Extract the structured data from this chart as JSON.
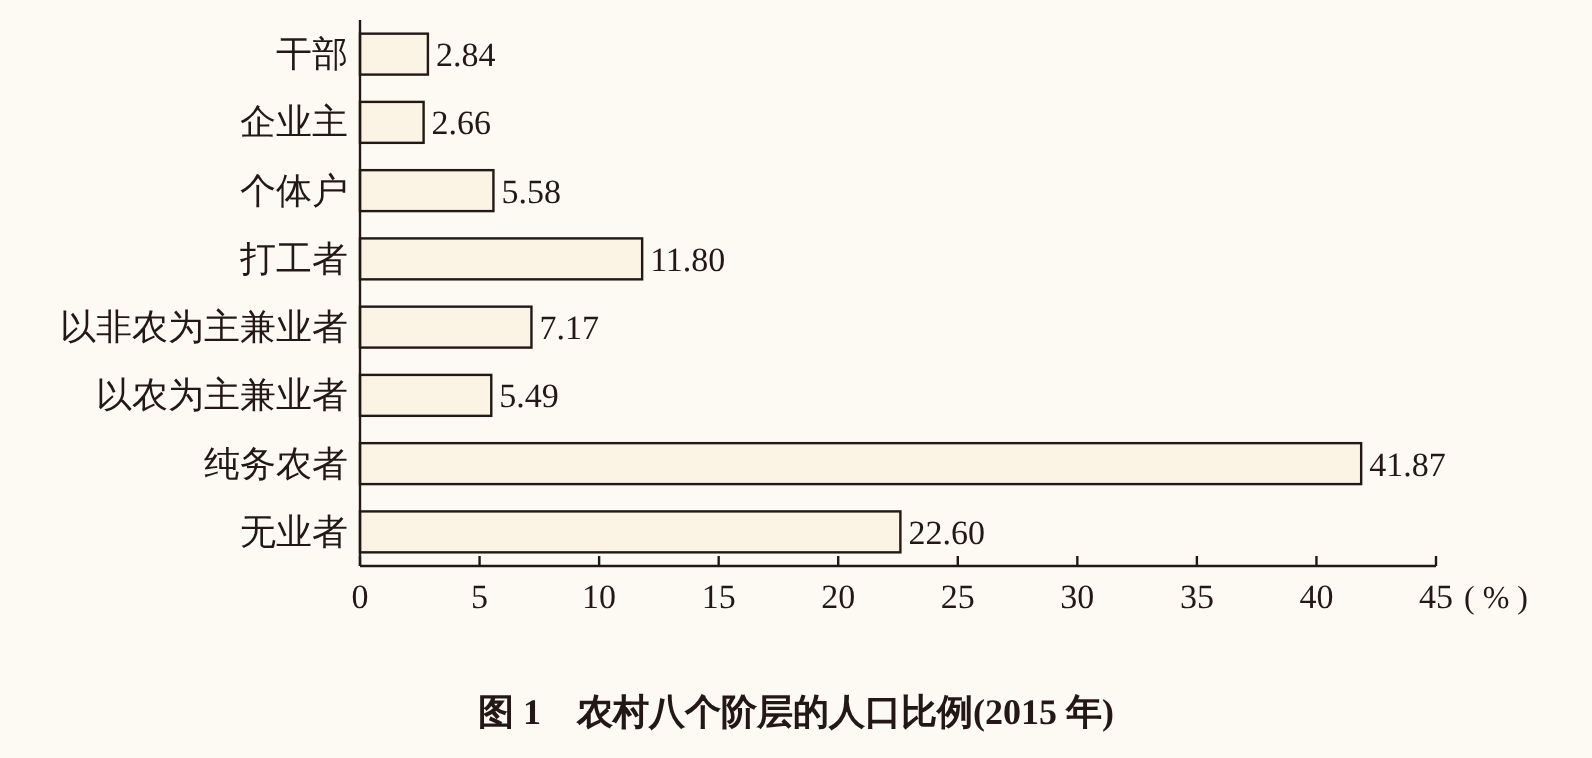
{
  "chart_data": {
    "type": "bar",
    "orientation": "horizontal",
    "title": "图 1　农村八个阶层的人口比例(2015 年)",
    "xlabel": "( % )",
    "categories": [
      "干部",
      "企业主",
      "个体户",
      "打工者",
      "以非农为主兼业者",
      "以农为主兼业者",
      "纯务农者",
      "无业者"
    ],
    "values": [
      2.84,
      2.66,
      5.58,
      11.8,
      7.17,
      5.49,
      41.87,
      22.6
    ],
    "value_labels": [
      "2.84",
      "2.66",
      "5.58",
      "11.80",
      "7.17",
      "5.49",
      "41.87",
      "22.60"
    ],
    "color": "#fbf3e4",
    "xlim": [
      0,
      45
    ],
    "xticks": [
      0,
      5,
      10,
      15,
      20,
      25,
      30,
      35,
      40,
      45
    ]
  }
}
